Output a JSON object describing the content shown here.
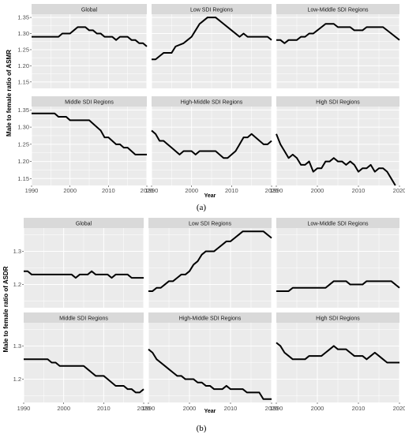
{
  "figure": {
    "label_a": "(a)",
    "label_b": "(b)"
  },
  "chart_data": [
    {
      "type": "line",
      "id": "a",
      "ylabel": "Male to female ratio of ASMR",
      "xlabel": "Year",
      "xlim": [
        1990,
        2020
      ],
      "ylim": [
        1.13,
        1.36
      ],
      "xticks": [
        1990,
        2000,
        2010,
        2020
      ],
      "yticks": [
        1.15,
        1.2,
        1.25,
        1.3,
        1.35
      ],
      "ytick_labels": [
        "1.15",
        "1.20",
        "1.25",
        "1.30",
        "1.35"
      ],
      "grid": true,
      "panels": [
        {
          "name": "Global",
          "points": [
            [
              1990,
              1.29
            ],
            [
              1997,
              1.29
            ],
            [
              1998,
              1.3
            ],
            [
              2000,
              1.3
            ],
            [
              2001,
              1.31
            ],
            [
              2002,
              1.32
            ],
            [
              2004,
              1.32
            ],
            [
              2005,
              1.31
            ],
            [
              2006,
              1.31
            ],
            [
              2007,
              1.3
            ],
            [
              2008,
              1.3
            ],
            [
              2009,
              1.29
            ],
            [
              2011,
              1.29
            ],
            [
              2012,
              1.28
            ],
            [
              2013,
              1.29
            ],
            [
              2015,
              1.29
            ],
            [
              2016,
              1.28
            ],
            [
              2017,
              1.28
            ],
            [
              2018,
              1.27
            ],
            [
              2019,
              1.27
            ],
            [
              2020,
              1.26
            ]
          ]
        },
        {
          "name": "Low SDI Regions",
          "points": [
            [
              1990,
              1.22
            ],
            [
              1991,
              1.22
            ],
            [
              1992,
              1.23
            ],
            [
              1993,
              1.24
            ],
            [
              1995,
              1.24
            ],
            [
              1996,
              1.26
            ],
            [
              1998,
              1.27
            ],
            [
              1999,
              1.28
            ],
            [
              2000,
              1.29
            ],
            [
              2001,
              1.31
            ],
            [
              2002,
              1.33
            ],
            [
              2003,
              1.34
            ],
            [
              2004,
              1.35
            ],
            [
              2006,
              1.35
            ],
            [
              2008,
              1.33
            ],
            [
              2010,
              1.31
            ],
            [
              2012,
              1.29
            ],
            [
              2013,
              1.3
            ],
            [
              2014,
              1.29
            ],
            [
              2019,
              1.29
            ],
            [
              2020,
              1.28
            ]
          ]
        },
        {
          "name": "Low-Middle SDI Regions",
          "points": [
            [
              1990,
              1.28
            ],
            [
              1991,
              1.28
            ],
            [
              1992,
              1.27
            ],
            [
              1993,
              1.28
            ],
            [
              1995,
              1.28
            ],
            [
              1996,
              1.29
            ],
            [
              1997,
              1.29
            ],
            [
              1998,
              1.3
            ],
            [
              1999,
              1.3
            ],
            [
              2000,
              1.31
            ],
            [
              2001,
              1.32
            ],
            [
              2002,
              1.33
            ],
            [
              2004,
              1.33
            ],
            [
              2005,
              1.32
            ],
            [
              2008,
              1.32
            ],
            [
              2009,
              1.31
            ],
            [
              2011,
              1.31
            ],
            [
              2012,
              1.32
            ],
            [
              2016,
              1.32
            ],
            [
              2018,
              1.3
            ],
            [
              2020,
              1.28
            ]
          ]
        },
        {
          "name": "Middle SDI Regions",
          "points": [
            [
              1990,
              1.34
            ],
            [
              1996,
              1.34
            ],
            [
              1997,
              1.33
            ],
            [
              1999,
              1.33
            ],
            [
              2000,
              1.32
            ],
            [
              2005,
              1.32
            ],
            [
              2006,
              1.31
            ],
            [
              2008,
              1.29
            ],
            [
              2009,
              1.27
            ],
            [
              2010,
              1.27
            ],
            [
              2011,
              1.26
            ],
            [
              2012,
              1.25
            ],
            [
              2013,
              1.25
            ],
            [
              2014,
              1.24
            ],
            [
              2015,
              1.24
            ],
            [
              2017,
              1.22
            ],
            [
              2020,
              1.22
            ]
          ]
        },
        {
          "name": "High-Middle SDI Regions",
          "points": [
            [
              1990,
              1.29
            ],
            [
              1991,
              1.28
            ],
            [
              1992,
              1.26
            ],
            [
              1993,
              1.26
            ],
            [
              1994,
              1.25
            ],
            [
              1995,
              1.24
            ],
            [
              1996,
              1.23
            ],
            [
              1997,
              1.22
            ],
            [
              1998,
              1.23
            ],
            [
              2000,
              1.23
            ],
            [
              2001,
              1.22
            ],
            [
              2002,
              1.23
            ],
            [
              2006,
              1.23
            ],
            [
              2007,
              1.22
            ],
            [
              2008,
              1.21
            ],
            [
              2009,
              1.21
            ],
            [
              2010,
              1.22
            ],
            [
              2011,
              1.23
            ],
            [
              2012,
              1.25
            ],
            [
              2013,
              1.27
            ],
            [
              2014,
              1.27
            ],
            [
              2015,
              1.28
            ],
            [
              2016,
              1.27
            ],
            [
              2017,
              1.26
            ],
            [
              2018,
              1.25
            ],
            [
              2019,
              1.25
            ],
            [
              2020,
              1.26
            ]
          ]
        },
        {
          "name": "High SDI Regions",
          "points": [
            [
              1990,
              1.28
            ],
            [
              1991,
              1.25
            ],
            [
              1992,
              1.23
            ],
            [
              1993,
              1.21
            ],
            [
              1994,
              1.22
            ],
            [
              1995,
              1.21
            ],
            [
              1996,
              1.19
            ],
            [
              1997,
              1.19
            ],
            [
              1998,
              1.2
            ],
            [
              1999,
              1.17
            ],
            [
              2000,
              1.18
            ],
            [
              2001,
              1.18
            ],
            [
              2002,
              1.2
            ],
            [
              2003,
              1.2
            ],
            [
              2004,
              1.21
            ],
            [
              2005,
              1.2
            ],
            [
              2006,
              1.2
            ],
            [
              2007,
              1.19
            ],
            [
              2008,
              1.2
            ],
            [
              2009,
              1.19
            ],
            [
              2010,
              1.17
            ],
            [
              2011,
              1.18
            ],
            [
              2012,
              1.18
            ],
            [
              2013,
              1.19
            ],
            [
              2014,
              1.17
            ],
            [
              2015,
              1.18
            ],
            [
              2016,
              1.18
            ],
            [
              2017,
              1.17
            ],
            [
              2018,
              1.15
            ],
            [
              2019,
              1.13
            ]
          ]
        }
      ]
    },
    {
      "type": "line",
      "id": "b",
      "ylabel": "Male to female ratio of ASDR",
      "xlabel": "Year",
      "xlim": [
        1990,
        2020
      ],
      "ylim": [
        1.13,
        1.37
      ],
      "xticks": [
        1990,
        2000,
        2010,
        2020
      ],
      "yticks": [
        1.2,
        1.3
      ],
      "ytick_labels": [
        "1.2",
        "1.3"
      ],
      "grid": true,
      "panels": [
        {
          "name": "Global",
          "points": [
            [
              1990,
              1.24
            ],
            [
              1991,
              1.24
            ],
            [
              1992,
              1.23
            ],
            [
              2002,
              1.23
            ],
            [
              2003,
              1.22
            ],
            [
              2004,
              1.23
            ],
            [
              2006,
              1.23
            ],
            [
              2007,
              1.24
            ],
            [
              2008,
              1.23
            ],
            [
              2011,
              1.23
            ],
            [
              2012,
              1.22
            ],
            [
              2013,
              1.23
            ],
            [
              2016,
              1.23
            ],
            [
              2017,
              1.22
            ],
            [
              2020,
              1.22
            ]
          ]
        },
        {
          "name": "Low SDI Regions",
          "points": [
            [
              1990,
              1.18
            ],
            [
              1991,
              1.18
            ],
            [
              1992,
              1.19
            ],
            [
              1993,
              1.19
            ],
            [
              1994,
              1.2
            ],
            [
              1995,
              1.21
            ],
            [
              1996,
              1.21
            ],
            [
              1997,
              1.22
            ],
            [
              1998,
              1.23
            ],
            [
              1999,
              1.23
            ],
            [
              2000,
              1.24
            ],
            [
              2001,
              1.26
            ],
            [
              2002,
              1.27
            ],
            [
              2003,
              1.29
            ],
            [
              2004,
              1.3
            ],
            [
              2006,
              1.3
            ],
            [
              2007,
              1.31
            ],
            [
              2008,
              1.32
            ],
            [
              2009,
              1.33
            ],
            [
              2010,
              1.33
            ],
            [
              2011,
              1.34
            ],
            [
              2012,
              1.35
            ],
            [
              2013,
              1.36
            ],
            [
              2018,
              1.36
            ],
            [
              2020,
              1.34
            ]
          ]
        },
        {
          "name": "Low-Middle SDI Regions",
          "points": [
            [
              1990,
              1.18
            ],
            [
              1993,
              1.18
            ],
            [
              1994,
              1.19
            ],
            [
              2002,
              1.19
            ],
            [
              2003,
              1.2
            ],
            [
              2004,
              1.21
            ],
            [
              2007,
              1.21
            ],
            [
              2008,
              1.2
            ],
            [
              2011,
              1.2
            ],
            [
              2012,
              1.21
            ],
            [
              2018,
              1.21
            ],
            [
              2020,
              1.19
            ]
          ]
        },
        {
          "name": "Middle SDI Regions",
          "points": [
            [
              1990,
              1.26
            ],
            [
              1996,
              1.26
            ],
            [
              1997,
              1.25
            ],
            [
              1998,
              1.25
            ],
            [
              1999,
              1.24
            ],
            [
              2005,
              1.24
            ],
            [
              2006,
              1.23
            ],
            [
              2007,
              1.22
            ],
            [
              2008,
              1.21
            ],
            [
              2010,
              1.21
            ],
            [
              2011,
              1.2
            ],
            [
              2012,
              1.19
            ],
            [
              2013,
              1.18
            ],
            [
              2015,
              1.18
            ],
            [
              2016,
              1.17
            ],
            [
              2017,
              1.17
            ],
            [
              2018,
              1.16
            ],
            [
              2019,
              1.16
            ],
            [
              2020,
              1.17
            ]
          ]
        },
        {
          "name": "High-Middle SDI Regions",
          "points": [
            [
              1990,
              1.29
            ],
            [
              1991,
              1.28
            ],
            [
              1992,
              1.26
            ],
            [
              1993,
              1.25
            ],
            [
              1994,
              1.24
            ],
            [
              1995,
              1.23
            ],
            [
              1996,
              1.22
            ],
            [
              1997,
              1.21
            ],
            [
              1998,
              1.21
            ],
            [
              1999,
              1.2
            ],
            [
              2001,
              1.2
            ],
            [
              2002,
              1.19
            ],
            [
              2003,
              1.19
            ],
            [
              2004,
              1.18
            ],
            [
              2005,
              1.18
            ],
            [
              2006,
              1.17
            ],
            [
              2008,
              1.17
            ],
            [
              2009,
              1.18
            ],
            [
              2010,
              1.17
            ],
            [
              2013,
              1.17
            ],
            [
              2014,
              1.16
            ],
            [
              2017,
              1.16
            ],
            [
              2018,
              1.14
            ],
            [
              2020,
              1.14
            ]
          ]
        },
        {
          "name": "High SDI Regions",
          "points": [
            [
              1990,
              1.31
            ],
            [
              1991,
              1.3
            ],
            [
              1992,
              1.28
            ],
            [
              1993,
              1.27
            ],
            [
              1994,
              1.26
            ],
            [
              1997,
              1.26
            ],
            [
              1998,
              1.27
            ],
            [
              2001,
              1.27
            ],
            [
              2002,
              1.28
            ],
            [
              2003,
              1.29
            ],
            [
              2004,
              1.3
            ],
            [
              2005,
              1.29
            ],
            [
              2007,
              1.29
            ],
            [
              2008,
              1.28
            ],
            [
              2009,
              1.27
            ],
            [
              2011,
              1.27
            ],
            [
              2012,
              1.26
            ],
            [
              2013,
              1.27
            ],
            [
              2014,
              1.28
            ],
            [
              2015,
              1.27
            ],
            [
              2016,
              1.26
            ],
            [
              2017,
              1.25
            ],
            [
              2020,
              1.25
            ]
          ]
        }
      ]
    }
  ]
}
